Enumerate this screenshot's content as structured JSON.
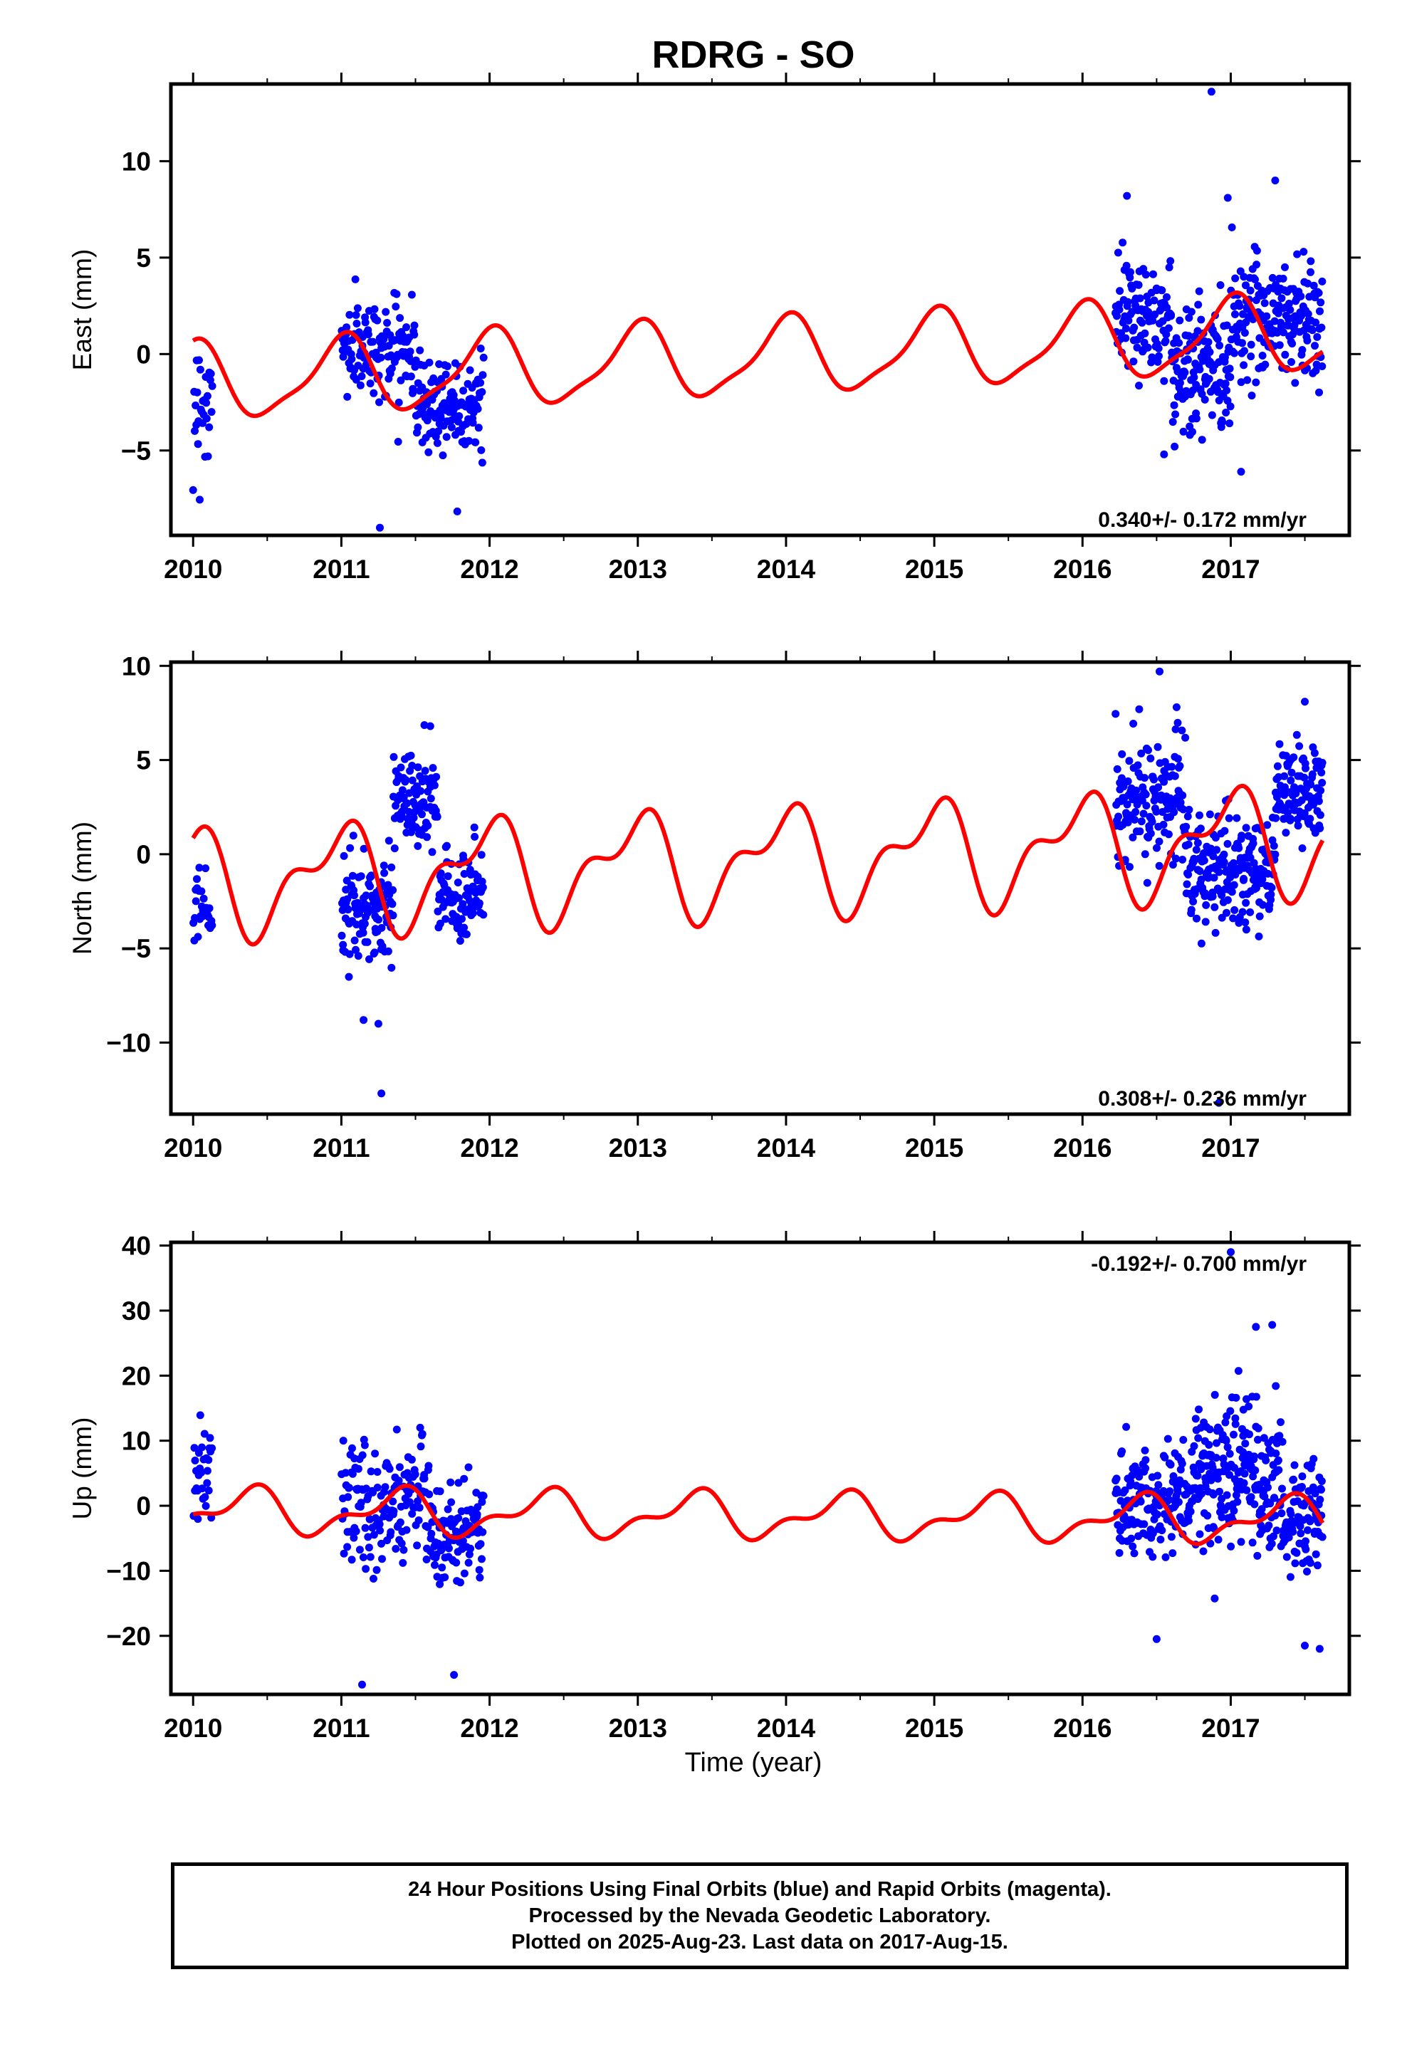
{
  "title": "RDRG - SO",
  "xlabel": "Time (year)",
  "colors": {
    "final_orbits": "#0000ff",
    "model_curve": "#ff0000",
    "frame": "#000000"
  },
  "caption": {
    "line1": "24 Hour Positions Using Final Orbits (blue) and Rapid Orbits (magenta).",
    "line2": "Processed by the Nevada Geodetic Laboratory.",
    "line3": "Plotted on 2025-Aug-23. Last data on 2017-Aug-15."
  },
  "chart_data": [
    {
      "type": "scatter",
      "panel": "east",
      "ylabel": "East (mm)",
      "rate_label": "0.340+/- 0.172 mm/yr",
      "rate_position": "bottom-right",
      "xlim": [
        2009.85,
        2017.8
      ],
      "ylim": [
        -9.4,
        14
      ],
      "xticks": [
        2010,
        2011,
        2012,
        2013,
        2014,
        2015,
        2016,
        2017
      ],
      "yticks": [
        -5,
        0,
        5,
        10
      ],
      "seasonal_fit": {
        "offset": -1.5,
        "rate": 0.34,
        "annual_amplitude": 1.9,
        "annual_phase": 0.25,
        "semiannual_amplitude": 0.5,
        "semiannual_phase": 0.1
      },
      "segments": [
        {
          "start": 2010.0,
          "end": 2010.13,
          "center": -2.5,
          "spread": 2.2,
          "count": 30
        },
        {
          "start": 2011.0,
          "end": 2011.5,
          "center": 0.3,
          "spread": 1.6,
          "count": 130
        },
        {
          "start": 2011.5,
          "end": 2011.96,
          "center": -2.5,
          "spread": 1.8,
          "count": 130
        },
        {
          "start": 2016.22,
          "end": 2016.6,
          "center": 2.0,
          "spread": 1.8,
          "count": 110
        },
        {
          "start": 2016.6,
          "end": 2017.0,
          "center": -0.8,
          "spread": 2.3,
          "count": 140
        },
        {
          "start": 2017.0,
          "end": 2017.62,
          "center": 2.0,
          "spread": 2.2,
          "count": 190
        }
      ],
      "outliers": [
        {
          "x": 2011.26,
          "y": -9.0
        },
        {
          "x": 2016.87,
          "y": 13.6
        },
        {
          "x": 2017.3,
          "y": 9.0
        },
        {
          "x": 2016.98,
          "y": 8.1
        },
        {
          "x": 2016.3,
          "y": 8.2
        },
        {
          "x": 2017.07,
          "y": -6.1
        },
        {
          "x": 2016.55,
          "y": -5.2
        }
      ]
    },
    {
      "type": "scatter",
      "panel": "north",
      "ylabel": "North (mm)",
      "rate_label": "0.308+/- 0.236 mm/yr",
      "rate_position": "bottom-right",
      "xlim": [
        2009.85,
        2017.8
      ],
      "ylim": [
        -13.8,
        10.2
      ],
      "xticks": [
        2010,
        2011,
        2012,
        2013,
        2014,
        2015,
        2016,
        2017
      ],
      "yticks": [
        -10,
        -5,
        0,
        5,
        10
      ],
      "seasonal_fit": {
        "offset": -1.5,
        "rate": 0.308,
        "annual_amplitude": 2.4,
        "annual_phase": 0.28,
        "semiannual_amplitude": 1.3,
        "semiannual_phase": 0.0
      },
      "segments": [
        {
          "start": 2010.0,
          "end": 2010.13,
          "center": -2.5,
          "spread": 1.6,
          "count": 30
        },
        {
          "start": 2011.0,
          "end": 2011.35,
          "center": -3.0,
          "spread": 2.0,
          "count": 120
        },
        {
          "start": 2011.35,
          "end": 2011.65,
          "center": 2.8,
          "spread": 1.8,
          "count": 90
        },
        {
          "start": 2011.65,
          "end": 2011.96,
          "center": -2.2,
          "spread": 1.8,
          "count": 90
        },
        {
          "start": 2016.22,
          "end": 2016.7,
          "center": 2.8,
          "spread": 2.4,
          "count": 150
        },
        {
          "start": 2016.7,
          "end": 2017.3,
          "center": -0.9,
          "spread": 2.0,
          "count": 200
        },
        {
          "start": 2017.3,
          "end": 2017.62,
          "center": 3.2,
          "spread": 1.8,
          "count": 110
        }
      ],
      "outliers": [
        {
          "x": 2011.27,
          "y": -12.7
        },
        {
          "x": 2011.15,
          "y": -8.8
        },
        {
          "x": 2011.25,
          "y": -9.0
        },
        {
          "x": 2016.52,
          "y": 9.7
        },
        {
          "x": 2017.5,
          "y": 8.1
        },
        {
          "x": 2016.92,
          "y": -13.2
        },
        {
          "x": 2011.6,
          "y": 6.8
        }
      ]
    },
    {
      "type": "scatter",
      "panel": "up",
      "ylabel": "Up (mm)",
      "rate_label": "-0.192+/- 0.700 mm/yr",
      "rate_position": "top-right",
      "xlim": [
        2009.85,
        2017.8
      ],
      "ylim": [
        -29,
        40.5
      ],
      "xticks": [
        2010,
        2011,
        2012,
        2013,
        2014,
        2015,
        2016,
        2017
      ],
      "yticks": [
        -20,
        -10,
        0,
        10,
        20,
        30,
        40
      ],
      "seasonal_fit": {
        "offset": -0.8,
        "rate": -0.192,
        "annual_amplitude": 3.0,
        "annual_phase": -0.12,
        "semiannual_amplitude": 1.6,
        "semiannual_phase": 0.3
      },
      "segments": [
        {
          "start": 2010.0,
          "end": 2010.13,
          "center": 4.5,
          "spread": 5.0,
          "count": 30
        },
        {
          "start": 2011.0,
          "end": 2011.6,
          "center": 0.5,
          "spread": 6.5,
          "count": 150
        },
        {
          "start": 2011.6,
          "end": 2011.96,
          "center": -4.5,
          "spread": 5.5,
          "count": 110
        },
        {
          "start": 2016.22,
          "end": 2016.75,
          "center": 0.0,
          "spread": 5.5,
          "count": 160
        },
        {
          "start": 2016.75,
          "end": 2017.35,
          "center": 5.0,
          "spread": 7.5,
          "count": 220
        },
        {
          "start": 2017.35,
          "end": 2017.62,
          "center": -2.0,
          "spread": 6.5,
          "count": 90
        }
      ],
      "outliers": [
        {
          "x": 2011.14,
          "y": -27.5
        },
        {
          "x": 2011.76,
          "y": -26.0
        },
        {
          "x": 2017.0,
          "y": 39.0
        },
        {
          "x": 2017.17,
          "y": 27.5
        },
        {
          "x": 2017.28,
          "y": 27.8
        },
        {
          "x": 2016.5,
          "y": -20.5
        },
        {
          "x": 2017.6,
          "y": -22.0
        },
        {
          "x": 2017.5,
          "y": -21.5
        }
      ]
    }
  ]
}
